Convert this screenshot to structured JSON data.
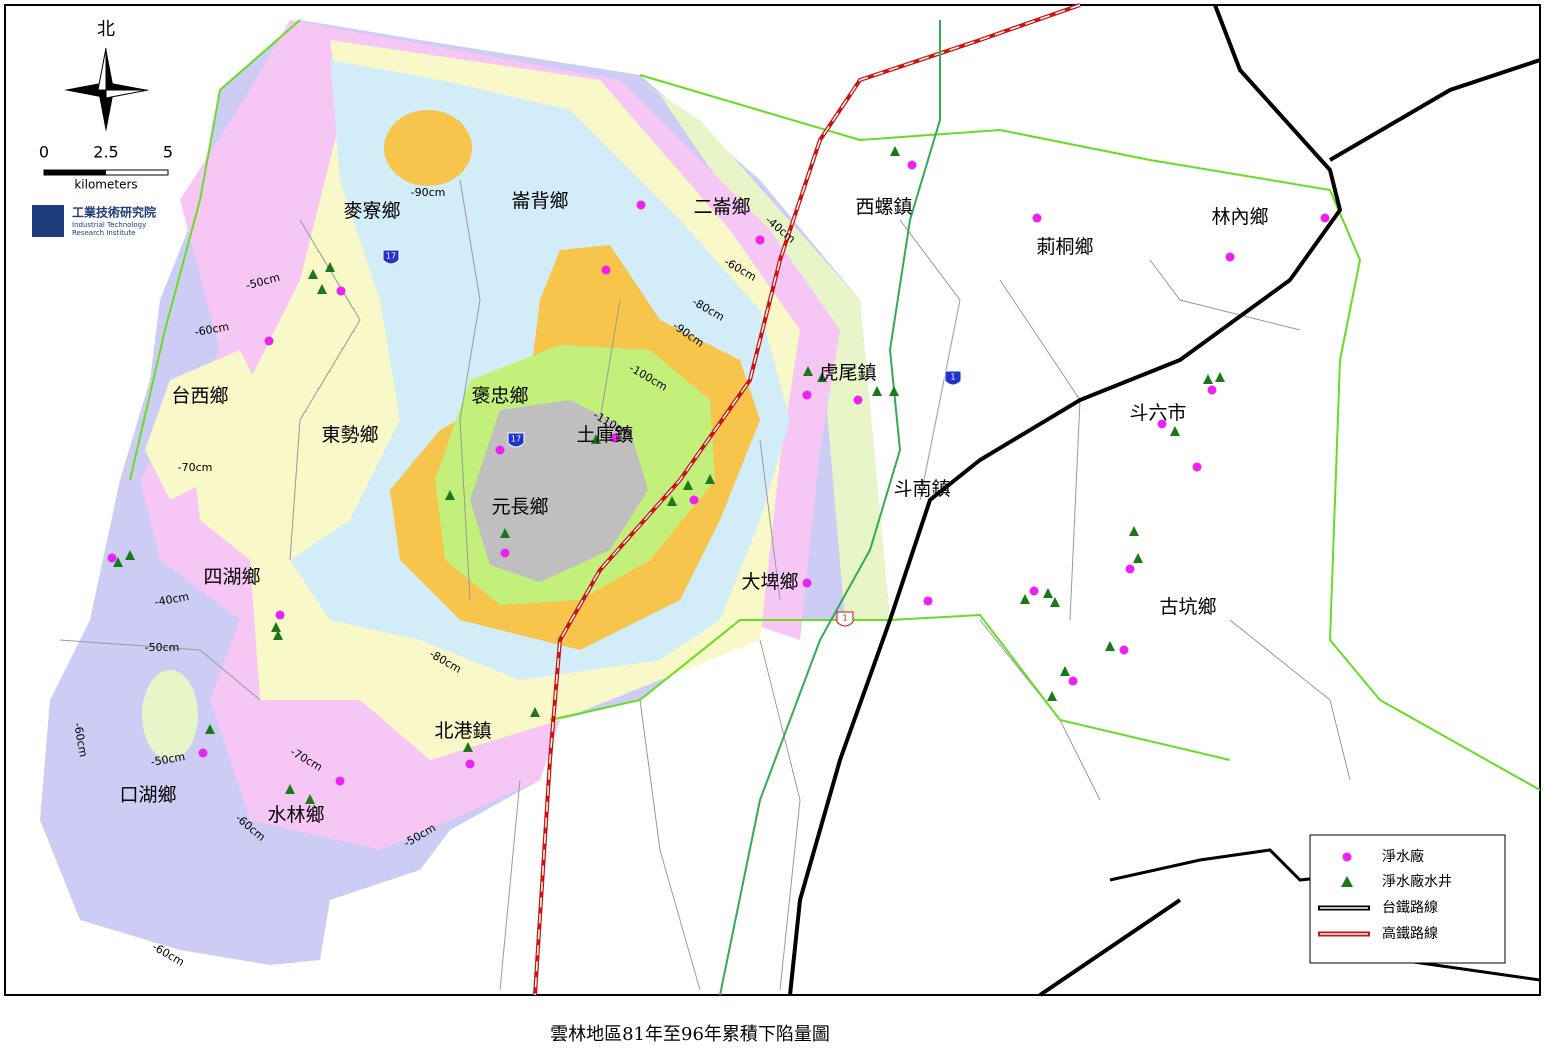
{
  "north_label": "北",
  "scale": {
    "ticks": [
      "0",
      "2.5",
      "5"
    ],
    "unit": "kilometers"
  },
  "logo": {
    "name": "工業技術研究院",
    "english": [
      "Industrial Technology",
      "Research Institute"
    ]
  },
  "townships": [
    "麥寮鄉",
    "崙背鄉",
    "二崙鄉",
    "西螺鎮",
    "莿桐鄉",
    "林內鄉",
    "台西鄉",
    "褒忠鄉",
    "東勢鄉",
    "土庫鎮",
    "虎尾鎮",
    "斗六市",
    "元長鄉",
    "斗南鎮",
    "四湖鄉",
    "大埤鄉",
    "古坑鄉",
    "北港鎮",
    "口湖鄉",
    "水林鄉"
  ],
  "contour_labels": [
    "-90cm",
    "-40cm",
    "-60cm",
    "-80cm",
    "-90cm",
    "-100cm",
    "-110cm",
    "-50cm",
    "-60cm",
    "-70cm",
    "-40cm",
    "-50cm",
    "-80cm",
    "-60cm",
    "-50cm",
    "-70cm",
    "-60cm",
    "-50cm",
    "-60cm"
  ],
  "road_shields": [
    "17",
    "17",
    "1",
    "1"
  ],
  "legend": [
    "淨水廠",
    "淨水廠水井",
    "台鐵路線",
    "高鐵路線"
  ],
  "caption": "雲林地區81年至96年累積下陷量圖"
}
